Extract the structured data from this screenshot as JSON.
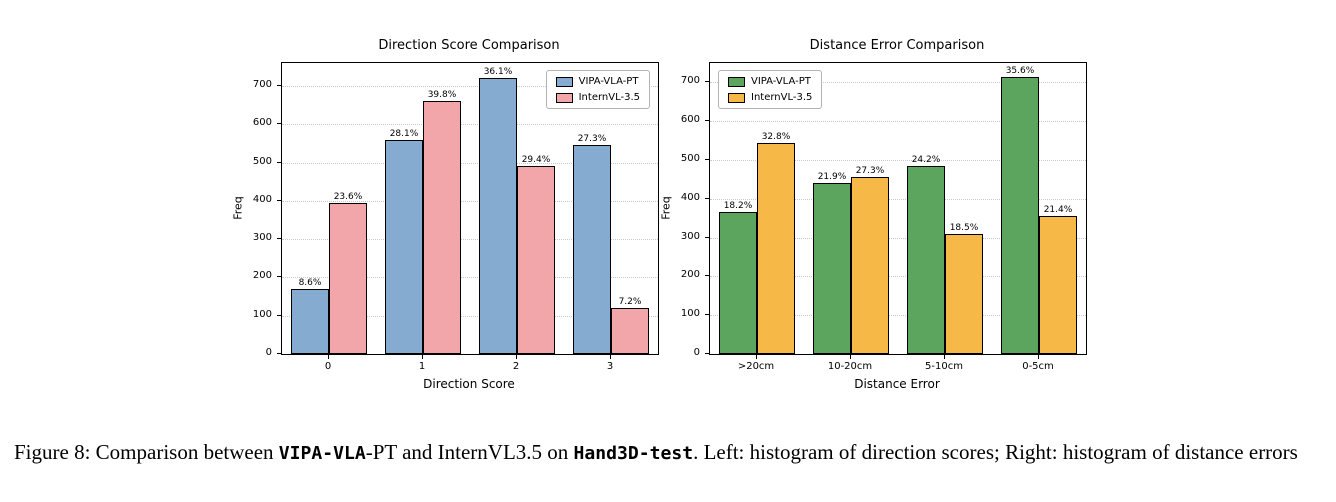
{
  "figure": {
    "caption": {
      "segments": [
        {
          "text": "Figure 8: Comparison between ",
          "mono": false
        },
        {
          "text": "VIPA-VLA",
          "mono": true
        },
        {
          "text": "-PT and InternVL3.5 on ",
          "mono": false
        },
        {
          "text": "Hand3D-test",
          "mono": true
        },
        {
          "text": ". Left: histogram of direction scores; Right: histogram of distance errors",
          "mono": false
        }
      ]
    }
  },
  "chart_data": [
    {
      "type": "bar",
      "title": "Direction Score Comparison",
      "xlabel": "Direction Score",
      "ylabel": "Freq",
      "categories": [
        "0",
        "1",
        "2",
        "3"
      ],
      "ylim": [
        0,
        760
      ],
      "yticks": [
        0,
        100,
        200,
        300,
        400,
        500,
        600,
        700
      ],
      "grid": true,
      "legend_position": "top-right",
      "series": [
        {
          "name": "VIPA-VLA-PT",
          "color": "#85abd0",
          "values": [
            170,
            560,
            720,
            545
          ],
          "labels": [
            "8.6%",
            "28.1%",
            "36.1%",
            "27.3%"
          ]
        },
        {
          "name": "InternVL-3.5",
          "color": "#f3a6aa",
          "values": [
            395,
            660,
            490,
            120
          ],
          "labels": [
            "23.6%",
            "39.8%",
            "29.4%",
            "7.2%"
          ]
        }
      ]
    },
    {
      "type": "bar",
      "title": "Distance Error Comparison",
      "xlabel": "Distance Error",
      "ylabel": "Freq",
      "categories": [
        ">20cm",
        "10-20cm",
        "5-10cm",
        "0-5cm"
      ],
      "ylim": [
        0,
        750
      ],
      "yticks": [
        0,
        100,
        200,
        300,
        400,
        500,
        600,
        700
      ],
      "grid": true,
      "legend_position": "top-left",
      "series": [
        {
          "name": "VIPA-VLA-PT",
          "color": "#5ba55f",
          "values": [
            365,
            440,
            485,
            715
          ],
          "labels": [
            "18.2%",
            "21.9%",
            "24.2%",
            "35.6%"
          ]
        },
        {
          "name": "InternVL-3.5",
          "color": "#f6b847",
          "values": [
            545,
            455,
            308,
            355
          ],
          "labels": [
            "32.8%",
            "27.3%",
            "18.5%",
            "21.4%"
          ]
        }
      ]
    }
  ]
}
